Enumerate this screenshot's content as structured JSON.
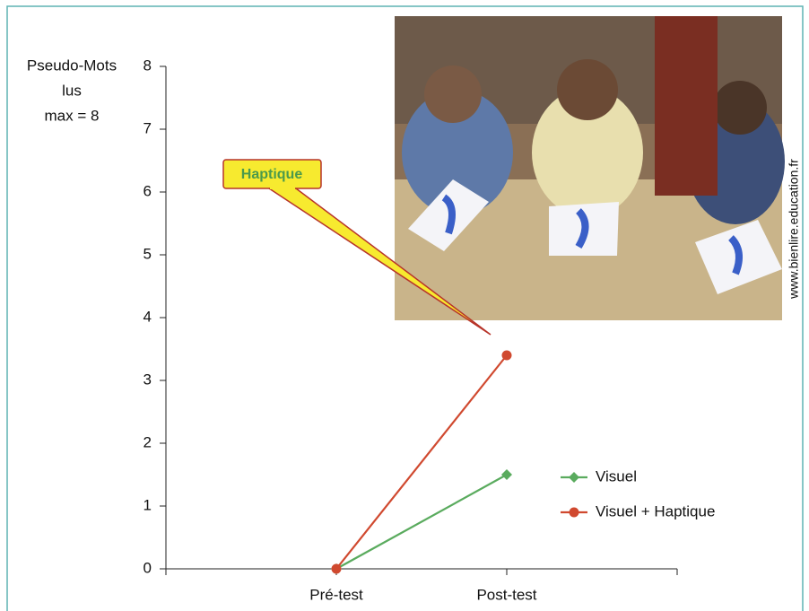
{
  "chart_data": {
    "type": "line",
    "ylabel": [
      "Pseudo-Mots",
      "lus",
      "max = 8"
    ],
    "annotation": "Haptique",
    "credit": "www.bienlire.education.fr",
    "categories": [
      null,
      "Pré-test",
      "Post-test",
      null
    ],
    "series": [
      {
        "name": "Visuel",
        "color": "#5aab5e",
        "marker": "diamond",
        "values": [
          null,
          0,
          1.5,
          null
        ]
      },
      {
        "name": "Visuel + Haptique",
        "color": "#d0492f",
        "marker": "circle",
        "values": [
          null,
          0,
          3.4,
          null
        ]
      }
    ],
    "ylim": [
      0,
      8
    ],
    "yticks": [
      0,
      1,
      2,
      3,
      4,
      5,
      6,
      7,
      8
    ],
    "grid": false
  }
}
